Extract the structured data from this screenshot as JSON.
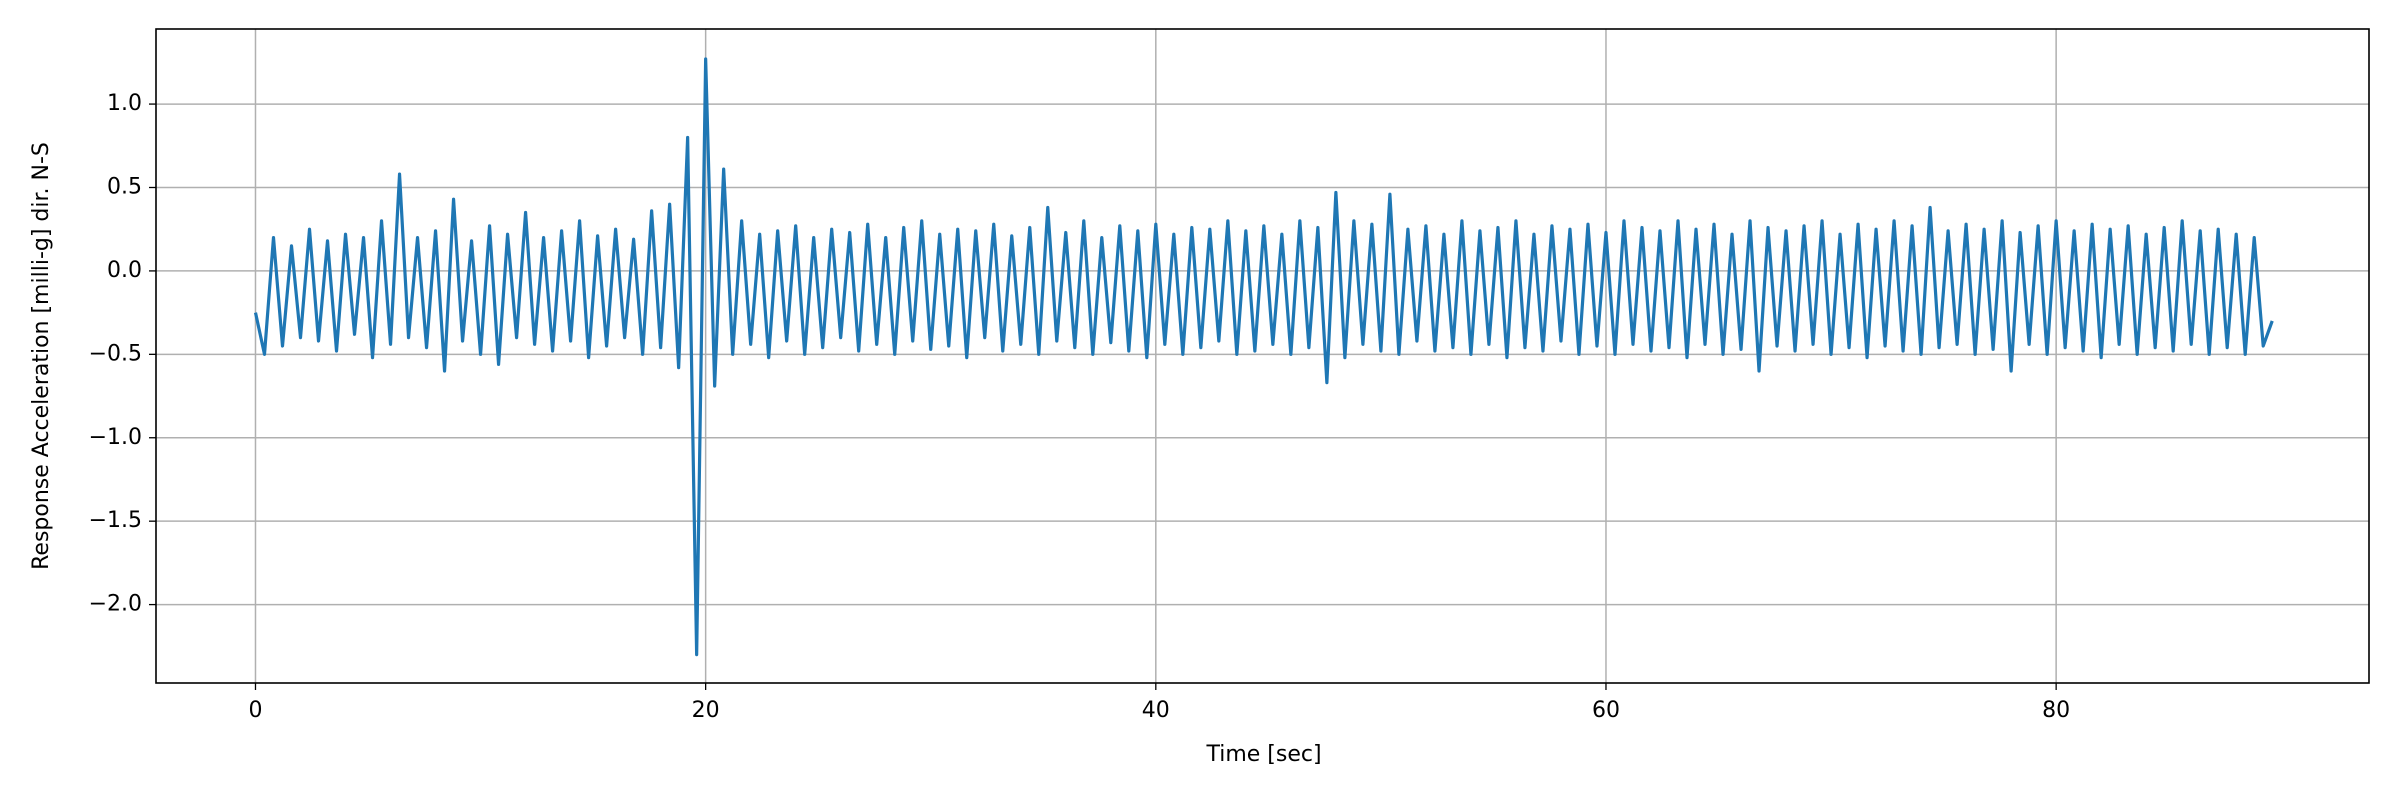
{
  "chart_data": {
    "type": "line",
    "xlabel": "Time [sec]",
    "ylabel": "Response Acceleration [milli-g] dir. N-S",
    "color": "#1f77b4",
    "grid": true,
    "xlim": [
      -4.42,
      93.9
    ],
    "ylim": [
      -2.47,
      1.45
    ],
    "xticks": [
      0,
      20,
      40,
      60,
      80
    ],
    "yticks": [
      {
        "value": -2,
        "label": "−2.0"
      },
      {
        "value": -1.5,
        "label": "−1.5"
      },
      {
        "value": -1,
        "label": "−1.0"
      },
      {
        "value": -0.5,
        "label": "−0.5"
      },
      {
        "value": 0,
        "label": "0.0"
      },
      0.5,
      {
        "value": 1,
        "label": "1.0"
      }
    ],
    "x": [
      0,
      0.4,
      0.8,
      1.2,
      1.6,
      2,
      2.4,
      2.8,
      3.2,
      3.6,
      4,
      4.4,
      4.8,
      5.2,
      5.6,
      6,
      6.4,
      6.8,
      7.2,
      7.6,
      8,
      8.4,
      8.8,
      9.2,
      9.6,
      10,
      10.4,
      10.8,
      11.2,
      11.6,
      12,
      12.4,
      12.8,
      13.2,
      13.6,
      14,
      14.4,
      14.8,
      15.2,
      15.6,
      16,
      16.4,
      16.8,
      17.2,
      17.6,
      18,
      18.4,
      18.8,
      19.2,
      19.6,
      20,
      20.4,
      20.8,
      21.2,
      21.6,
      22,
      22.4,
      22.8,
      23.2,
      23.6,
      24,
      24.4,
      24.8,
      25.2,
      25.6,
      26,
      26.4,
      26.8,
      27.2,
      27.6,
      28,
      28.4,
      28.8,
      29.2,
      29.6,
      30,
      30.4,
      30.8,
      31.2,
      31.6,
      32,
      32.4,
      32.8,
      33.2,
      33.6,
      34,
      34.4,
      34.8,
      35.2,
      35.6,
      36,
      36.4,
      36.8,
      37.2,
      37.6,
      38,
      38.4,
      38.8,
      39.2,
      39.6,
      40,
      40.4,
      40.8,
      41.2,
      41.6,
      42,
      42.4,
      42.8,
      43.2,
      43.6,
      44,
      44.4,
      44.8,
      45.2,
      45.6,
      46,
      46.4,
      46.8,
      47.2,
      47.6,
      48,
      48.4,
      48.8,
      49.2,
      49.6,
      50,
      50.4,
      50.8,
      51.2,
      51.6,
      52,
      52.4,
      52.8,
      53.2,
      53.6,
      54,
      54.4,
      54.8,
      55.2,
      55.6,
      56,
      56.4,
      56.8,
      57.2,
      57.6,
      58,
      58.4,
      58.8,
      59.2,
      59.6,
      60,
      60.4,
      60.8,
      61.2,
      61.6,
      62,
      62.4,
      62.8,
      63.2,
      63.6,
      64,
      64.4,
      64.8,
      65.2,
      65.6,
      66,
      66.4,
      66.8,
      67.2,
      67.6,
      68,
      68.4,
      68.8,
      69.2,
      69.6,
      70,
      70.4,
      70.8,
      71.2,
      71.6,
      72,
      72.4,
      72.8,
      73.2,
      73.6,
      74,
      74.4,
      74.8,
      75.2,
      75.6,
      76,
      76.4,
      76.8,
      77.2,
      77.6,
      78,
      78.4,
      78.8,
      79.2,
      79.6,
      80,
      80.4,
      80.8,
      81.2,
      81.6,
      82,
      82.4,
      82.8,
      83.2,
      83.6,
      84,
      84.4,
      84.8,
      85.2,
      85.6,
      86,
      86.4,
      86.8,
      87.2,
      87.6,
      88,
      88.4,
      88.8,
      89.2,
      89.6
    ],
    "values": [
      -0.25,
      -0.5,
      0.2,
      -0.45,
      0.15,
      -0.4,
      0.25,
      -0.42,
      0.18,
      -0.48,
      0.22,
      -0.38,
      0.2,
      -0.52,
      0.3,
      -0.44,
      0.58,
      -0.4,
      0.2,
      -0.46,
      0.24,
      -0.6,
      0.43,
      -0.42,
      0.18,
      -0.5,
      0.27,
      -0.56,
      0.22,
      -0.4,
      0.35,
      -0.44,
      0.2,
      -0.48,
      0.24,
      -0.42,
      0.3,
      -0.52,
      0.21,
      -0.45,
      0.25,
      -0.4,
      0.19,
      -0.5,
      0.36,
      -0.46,
      0.4,
      -0.58,
      0.8,
      -2.3,
      1.27,
      -0.69,
      0.61,
      -0.5,
      0.3,
      -0.44,
      0.22,
      -0.52,
      0.24,
      -0.42,
      0.27,
      -0.5,
      0.2,
      -0.46,
      0.25,
      -0.4,
      0.23,
      -0.48,
      0.28,
      -0.44,
      0.2,
      -0.5,
      0.26,
      -0.42,
      0.3,
      -0.47,
      0.22,
      -0.45,
      0.25,
      -0.52,
      0.24,
      -0.4,
      0.28,
      -0.48,
      0.21,
      -0.44,
      0.26,
      -0.5,
      0.38,
      -0.42,
      0.23,
      -0.46,
      0.3,
      -0.5,
      0.2,
      -0.43,
      0.27,
      -0.48,
      0.24,
      -0.52,
      0.28,
      -0.44,
      0.22,
      -0.5,
      0.26,
      -0.46,
      0.25,
      -0.42,
      0.3,
      -0.5,
      0.24,
      -0.48,
      0.27,
      -0.44,
      0.22,
      -0.5,
      0.3,
      -0.46,
      0.26,
      -0.67,
      0.47,
      -0.52,
      0.3,
      -0.44,
      0.28,
      -0.48,
      0.46,
      -0.5,
      0.25,
      -0.42,
      0.27,
      -0.48,
      0.22,
      -0.46,
      0.3,
      -0.5,
      0.24,
      -0.44,
      0.26,
      -0.52,
      0.3,
      -0.46,
      0.22,
      -0.48,
      0.27,
      -0.42,
      0.25,
      -0.5,
      0.28,
      -0.45,
      0.23,
      -0.5,
      0.3,
      -0.44,
      0.26,
      -0.48,
      0.24,
      -0.46,
      0.3,
      -0.52,
      0.25,
      -0.44,
      0.28,
      -0.5,
      0.22,
      -0.47,
      0.3,
      -0.6,
      0.26,
      -0.45,
      0.24,
      -0.48,
      0.27,
      -0.44,
      0.3,
      -0.5,
      0.22,
      -0.46,
      0.28,
      -0.52,
      0.25,
      -0.45,
      0.3,
      -0.48,
      0.27,
      -0.5,
      0.38,
      -0.46,
      0.24,
      -0.44,
      0.28,
      -0.5,
      0.25,
      -0.47,
      0.3,
      -0.6,
      0.23,
      -0.44,
      0.27,
      -0.5,
      0.3,
      -0.46,
      0.24,
      -0.48,
      0.28,
      -0.52,
      0.25,
      -0.44,
      0.27,
      -0.5,
      0.22,
      -0.46,
      0.26,
      -0.48,
      0.3,
      -0.44,
      0.24,
      -0.5,
      0.25,
      -0.46,
      0.22,
      -0.5,
      0.2,
      -0.45,
      -0.3
    ]
  }
}
